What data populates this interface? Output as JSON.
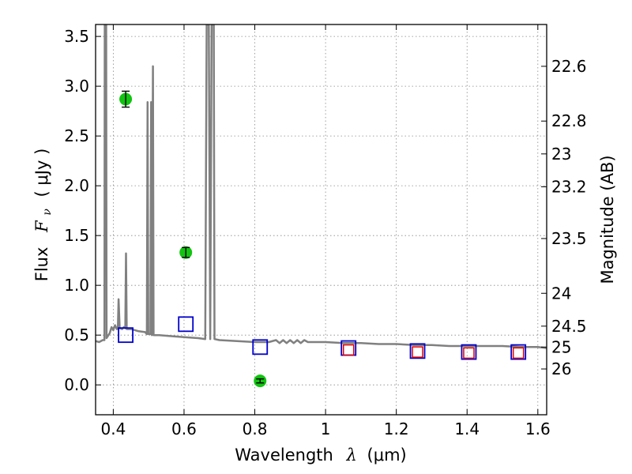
{
  "chart_data": {
    "type": "scatter",
    "xlabel": "Wavelength",
    "xlabel_symbol": "λ",
    "xlabel_unit": "(μm)",
    "ylabel": "Flux",
    "ylabel_symbol": "F",
    "ylabel_subscript": "ν",
    "ylabel_unit": "( μJy )",
    "y2label": "Magnitude (AB)",
    "xlim": [
      0.35,
      1.625
    ],
    "ylim": [
      -0.3,
      3.62
    ],
    "grid": true,
    "x_ticks": [
      0.4,
      0.6,
      0.8,
      1.0,
      1.2,
      1.4,
      1.6
    ],
    "x_tick_labels": [
      "0.4",
      "0.6",
      "0.8",
      "1",
      "1.2",
      "1.4",
      "1.6"
    ],
    "y_ticks": [
      0.0,
      0.5,
      1.0,
      1.5,
      2.0,
      2.5,
      3.0,
      3.5
    ],
    "y_tick_labels": [
      "0.0",
      "0.5",
      "1.0",
      "1.5",
      "2.0",
      "2.5",
      "3.0",
      "3.5"
    ],
    "y2_ticks": [
      {
        "flux": 3.2,
        "label": "22.6"
      },
      {
        "flux": 2.65,
        "label": "22.8"
      },
      {
        "flux": 2.32,
        "label": "23"
      },
      {
        "flux": 1.99,
        "label": "23.2"
      },
      {
        "flux": 1.47,
        "label": "23.5"
      },
      {
        "flux": 0.92,
        "label": "24"
      },
      {
        "flux": 0.59,
        "label": "24.5"
      },
      {
        "flux": 0.38,
        "label": "25"
      },
      {
        "flux": 0.16,
        "label": "26"
      }
    ],
    "colors": {
      "spectrum": "#808080",
      "observed": "#11c411",
      "model_box": "#0000cc",
      "model_box_alt": "#e00000",
      "grid": "#888888"
    },
    "series": [
      {
        "kind": "line",
        "points": [
          [
            0.35,
            0.44
          ],
          [
            0.36,
            0.43
          ],
          [
            0.37,
            0.45
          ],
          [
            0.375,
            0.45
          ],
          [
            0.376,
            3.62
          ],
          [
            0.38,
            3.62
          ],
          [
            0.381,
            0.47
          ],
          [
            0.39,
            0.52
          ],
          [
            0.395,
            0.58
          ],
          [
            0.4,
            0.55
          ],
          [
            0.405,
            0.6
          ],
          [
            0.41,
            0.56
          ],
          [
            0.413,
            0.57
          ],
          [
            0.415,
            0.86
          ],
          [
            0.418,
            0.57
          ],
          [
            0.425,
            0.56
          ],
          [
            0.43,
            0.58
          ],
          [
            0.434,
            0.57
          ],
          [
            0.436,
            1.32
          ],
          [
            0.438,
            0.56
          ],
          [
            0.45,
            0.56
          ],
          [
            0.47,
            0.54
          ],
          [
            0.49,
            0.53
          ],
          [
            0.495,
            0.51
          ],
          [
            0.497,
            2.84
          ],
          [
            0.499,
            0.51
          ],
          [
            0.505,
            0.51
          ],
          [
            0.507,
            2.84
          ],
          [
            0.509,
            0.5
          ],
          [
            0.512,
            3.2
          ],
          [
            0.514,
            0.5
          ],
          [
            0.53,
            0.5
          ],
          [
            0.56,
            0.49
          ],
          [
            0.6,
            0.48
          ],
          [
            0.64,
            0.47
          ],
          [
            0.66,
            0.46
          ],
          [
            0.664,
            3.62
          ],
          [
            0.67,
            3.62
          ],
          [
            0.674,
            0.46
          ],
          [
            0.678,
            3.62
          ],
          [
            0.684,
            3.62
          ],
          [
            0.686,
            0.46
          ],
          [
            0.7,
            0.45
          ],
          [
            0.75,
            0.44
          ],
          [
            0.8,
            0.43
          ],
          [
            0.84,
            0.43
          ],
          [
            0.86,
            0.45
          ],
          [
            0.87,
            0.42
          ],
          [
            0.88,
            0.45
          ],
          [
            0.89,
            0.42
          ],
          [
            0.9,
            0.45
          ],
          [
            0.91,
            0.42
          ],
          [
            0.92,
            0.45
          ],
          [
            0.93,
            0.42
          ],
          [
            0.94,
            0.45
          ],
          [
            0.95,
            0.43
          ],
          [
            1.0,
            0.43
          ],
          [
            1.05,
            0.42
          ],
          [
            1.1,
            0.42
          ],
          [
            1.15,
            0.41
          ],
          [
            1.2,
            0.41
          ],
          [
            1.25,
            0.4
          ],
          [
            1.3,
            0.4
          ],
          [
            1.35,
            0.39
          ],
          [
            1.4,
            0.39
          ],
          [
            1.45,
            0.39
          ],
          [
            1.5,
            0.39
          ],
          [
            1.55,
            0.38
          ],
          [
            1.6,
            0.38
          ],
          [
            1.625,
            0.37
          ]
        ]
      },
      {
        "kind": "points",
        "marker": "circle",
        "points": [
          {
            "x": 0.435,
            "y": 2.87,
            "err": 0.08
          },
          {
            "x": 0.605,
            "y": 1.33,
            "err": 0.05
          },
          {
            "x": 0.815,
            "y": 0.04,
            "err": 0.02
          }
        ]
      },
      {
        "kind": "points",
        "marker": "square",
        "points": [
          {
            "x": 0.435,
            "y": 0.5
          },
          {
            "x": 0.605,
            "y": 0.61
          },
          {
            "x": 0.815,
            "y": 0.38
          },
          {
            "x": 1.065,
            "y": 0.37
          },
          {
            "x": 1.26,
            "y": 0.34
          },
          {
            "x": 1.405,
            "y": 0.33
          },
          {
            "x": 1.545,
            "y": 0.33
          }
        ]
      },
      {
        "kind": "points",
        "marker": "square-small",
        "points": [
          {
            "x": 1.065,
            "y": 0.35
          },
          {
            "x": 1.26,
            "y": 0.33
          },
          {
            "x": 1.405,
            "y": 0.32
          },
          {
            "x": 1.545,
            "y": 0.32
          }
        ]
      }
    ]
  }
}
